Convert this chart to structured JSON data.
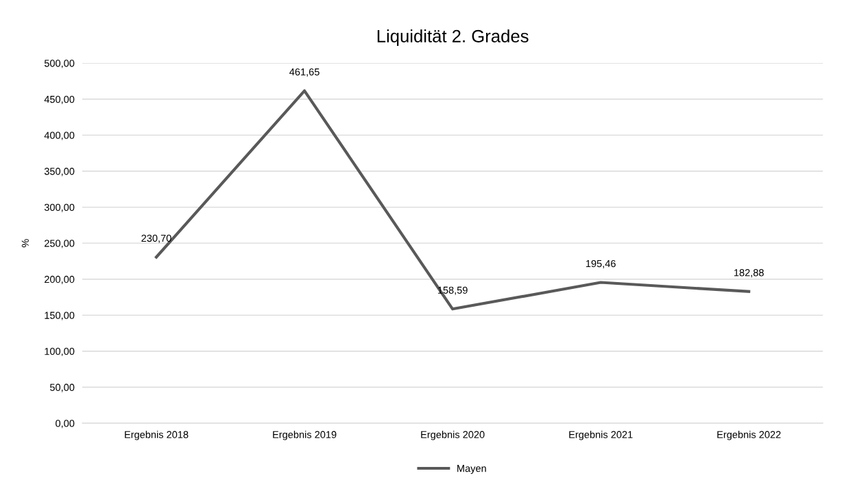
{
  "chart_data": {
    "type": "line",
    "title": "Liquidität 2. Grades",
    "ylabel": "%",
    "categories": [
      "Ergebnis 2018",
      "Ergebnis 2019",
      "Ergebnis 2020",
      "Ergebnis 2021",
      "Ergebnis 2022"
    ],
    "series": [
      {
        "name": "Mayen",
        "color": "#595959",
        "values": [
          230.7,
          461.65,
          158.59,
          195.46,
          182.88
        ],
        "value_labels": [
          "230,70",
          "461,65",
          "158,59",
          "195,46",
          "182,88"
        ]
      }
    ],
    "ylim": [
      0,
      500
    ],
    "yticks": [
      {
        "value": 0,
        "label": "0,00"
      },
      {
        "value": 50,
        "label": "50,00"
      },
      {
        "value": 100,
        "label": "100,00"
      },
      {
        "value": 150,
        "label": "150,00"
      },
      {
        "value": 200,
        "label": "200,00"
      },
      {
        "value": 250,
        "label": "250,00"
      },
      {
        "value": 300,
        "label": "300,00"
      },
      {
        "value": 350,
        "label": "350,00"
      },
      {
        "value": 400,
        "label": "400,00"
      },
      {
        "value": 450,
        "label": "450,00"
      },
      {
        "value": 500,
        "label": "500,00"
      }
    ],
    "grid": "y",
    "legend": "bottom",
    "marker": "none",
    "line_style": "solid"
  }
}
